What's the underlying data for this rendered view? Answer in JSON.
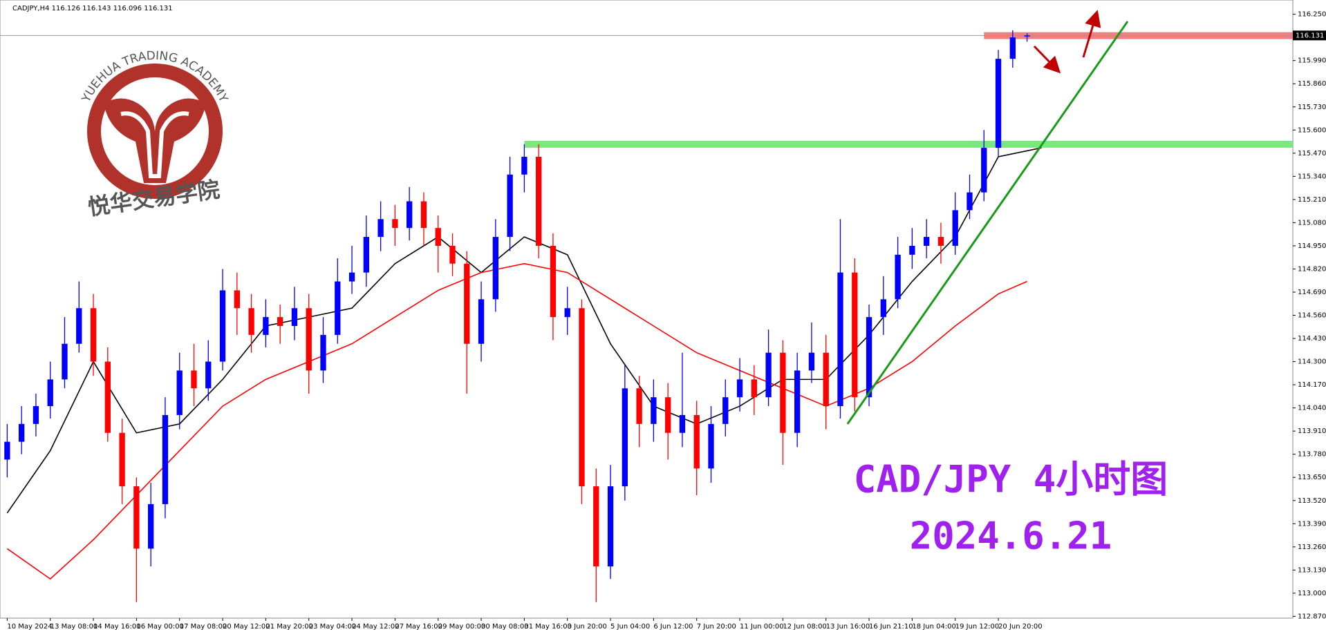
{
  "chart_data": {
    "type": "candlestick",
    "header": "CADJPY,H4  116.126 116.143 116.096 116.131",
    "logo_text": "YUEHUA TRADING ACADEMY",
    "logo_cn": "悦华交易学院",
    "annotations": [
      "CAD/JPY 4小时图",
      "2024.6.21"
    ],
    "current_price": 116.131,
    "xlim": [
      -0.5,
      89.5
    ],
    "ylim": [
      112.86,
      116.33
    ],
    "yticks": [
      {
        "value": 116.25,
        "label": "116.250"
      },
      {
        "value": 115.99,
        "label": "115.990"
      },
      {
        "value": 115.86,
        "label": "115.860"
      },
      {
        "value": 115.73,
        "label": "115.730"
      },
      {
        "value": 115.6,
        "label": "115.600"
      },
      {
        "value": 115.47,
        "label": "115.470"
      },
      {
        "value": 115.34,
        "label": "115.340"
      },
      {
        "value": 115.21,
        "label": "115.210"
      },
      {
        "value": 115.08,
        "label": "115.080"
      },
      {
        "value": 114.95,
        "label": "114.950"
      },
      {
        "value": 114.82,
        "label": "114.820"
      },
      {
        "value": 114.69,
        "label": "114.690"
      },
      {
        "value": 114.56,
        "label": "114.560"
      },
      {
        "value": 114.43,
        "label": "114.430"
      },
      {
        "value": 114.3,
        "label": "114.300"
      },
      {
        "value": 114.17,
        "label": "114.170"
      },
      {
        "value": 114.04,
        "label": "114.040"
      },
      {
        "value": 113.91,
        "label": "113.910"
      },
      {
        "value": 113.78,
        "label": "113.780"
      },
      {
        "value": 113.65,
        "label": "113.650"
      },
      {
        "value": 113.52,
        "label": "113.520"
      },
      {
        "value": 113.39,
        "label": "113.390"
      },
      {
        "value": 113.26,
        "label": "113.260"
      },
      {
        "value": 113.13,
        "label": "113.130"
      },
      {
        "value": 113.0,
        "label": "113.000"
      },
      {
        "value": 112.87,
        "label": "112.870"
      }
    ],
    "xticks": [
      {
        "value": 0,
        "label": "10 May 2024"
      },
      {
        "value": 3,
        "label": "13 May 08:00"
      },
      {
        "value": 6,
        "label": "14 May 16:00"
      },
      {
        "value": 9,
        "label": "16 May 00:00"
      },
      {
        "value": 12,
        "label": "17 May 08:00"
      },
      {
        "value": 15,
        "label": "20 May 12:00"
      },
      {
        "value": 18,
        "label": "21 May 20:00"
      },
      {
        "value": 21,
        "label": "23 May 04:00"
      },
      {
        "value": 24,
        "label": "24 May 12:00"
      },
      {
        "value": 27,
        "label": "27 May 16:00"
      },
      {
        "value": 30,
        "label": "29 May 00:00"
      },
      {
        "value": 33,
        "label": "30 May 08:00"
      },
      {
        "value": 36,
        "label": "31 May 16:00"
      },
      {
        "value": 39,
        "label": "3 Jun 20:00"
      },
      {
        "value": 42,
        "label": "5 Jun 04:00"
      },
      {
        "value": 45,
        "label": "6 Jun 12:00"
      },
      {
        "value": 48,
        "label": "7 Jun 20:00"
      },
      {
        "value": 51,
        "label": "11 Jun 00:00"
      },
      {
        "value": 54,
        "label": "12 Jun 08:00"
      },
      {
        "value": 57,
        "label": "13 Jun 16:00"
      },
      {
        "value": 60,
        "label": "16 Jun 21:10"
      },
      {
        "value": 63,
        "label": "18 Jun 04:00"
      },
      {
        "value": 66,
        "label": "19 Jun 12:00"
      },
      {
        "value": 69,
        "label": "20 Jun 20:00"
      }
    ],
    "open": [
      113.75,
      113.85,
      113.95,
      114.05,
      114.2,
      114.4,
      114.6,
      114.3,
      113.9,
      113.6,
      113.25,
      113.5,
      114.0,
      114.25,
      114.15,
      114.3,
      114.7,
      114.6,
      114.45,
      114.55,
      114.5,
      114.6,
      114.25,
      114.45,
      114.75,
      114.8,
      115.0,
      115.1,
      115.05,
      115.2,
      115.05,
      114.95,
      114.85,
      114.4,
      114.65,
      115.0,
      115.35,
      115.45,
      114.95,
      114.55,
      114.6,
      113.6,
      113.15,
      113.6,
      114.15,
      113.95,
      114.1,
      113.9,
      114.0,
      113.7,
      113.95,
      114.1,
      114.2,
      114.1,
      114.35,
      113.9,
      114.25,
      114.35,
      114.05,
      114.8,
      114.1,
      114.55,
      114.65,
      114.9,
      114.95,
      115.0,
      114.95,
      115.15,
      115.25,
      115.5,
      116.0,
      116.126
    ],
    "high": [
      113.95,
      114.05,
      114.12,
      114.3,
      114.55,
      114.75,
      114.68,
      114.38,
      113.98,
      113.65,
      113.62,
      114.1,
      114.35,
      114.4,
      114.42,
      114.82,
      114.8,
      114.68,
      114.65,
      114.62,
      114.72,
      114.68,
      114.55,
      114.88,
      114.95,
      115.12,
      115.2,
      115.18,
      115.28,
      115.25,
      115.12,
      115.02,
      114.92,
      114.75,
      115.1,
      115.45,
      115.52,
      115.52,
      115.02,
      114.72,
      114.65,
      113.7,
      113.72,
      114.28,
      114.22,
      114.2,
      114.18,
      114.35,
      114.08,
      114.05,
      114.2,
      114.32,
      114.28,
      114.48,
      114.42,
      114.35,
      114.52,
      114.45,
      115.1,
      114.88,
      114.62,
      114.78,
      115.0,
      115.05,
      115.1,
      115.08,
      115.25,
      115.35,
      115.6,
      116.05,
      116.16,
      116.143
    ],
    "low": [
      113.65,
      113.78,
      113.88,
      113.98,
      114.15,
      114.35,
      114.22,
      113.85,
      113.5,
      112.95,
      113.15,
      113.42,
      113.92,
      114.05,
      114.08,
      114.25,
      114.45,
      114.35,
      114.38,
      114.4,
      114.42,
      114.12,
      114.18,
      114.4,
      114.68,
      114.72,
      114.92,
      114.95,
      114.98,
      114.95,
      114.8,
      114.78,
      114.12,
      114.3,
      114.58,
      114.92,
      115.25,
      114.88,
      114.42,
      114.45,
      113.5,
      112.95,
      113.08,
      113.52,
      113.82,
      113.85,
      113.75,
      113.82,
      113.55,
      113.62,
      113.88,
      114.02,
      114.0,
      114.05,
      113.72,
      113.82,
      114.18,
      113.92,
      113.98,
      114.02,
      114.05,
      114.45,
      114.6,
      114.82,
      114.88,
      114.85,
      114.9,
      115.1,
      115.2,
      115.45,
      115.95,
      116.096
    ],
    "close": [
      113.85,
      113.95,
      114.05,
      114.2,
      114.4,
      114.6,
      114.3,
      113.9,
      113.6,
      113.25,
      113.5,
      114.0,
      114.25,
      114.15,
      114.3,
      114.7,
      114.6,
      114.45,
      114.55,
      114.5,
      114.6,
      114.25,
      114.45,
      114.75,
      114.8,
      115.0,
      115.1,
      115.05,
      115.2,
      115.05,
      114.95,
      114.85,
      114.4,
      114.65,
      115.0,
      115.35,
      115.45,
      114.95,
      114.55,
      114.6,
      113.6,
      113.15,
      113.6,
      114.15,
      113.95,
      114.1,
      113.9,
      114.0,
      113.7,
      113.95,
      114.1,
      114.2,
      114.1,
      114.35,
      113.9,
      114.25,
      114.35,
      114.05,
      114.8,
      114.1,
      114.55,
      114.65,
      114.9,
      114.95,
      115.0,
      114.95,
      115.15,
      115.25,
      115.5,
      116.0,
      116.12,
      116.131
    ],
    "up_color": "#0000ff",
    "down_color": "#ff0000",
    "lines": [
      {
        "color": "#000000",
        "x": [
          0,
          3,
          6,
          9,
          12,
          15,
          18,
          21,
          24,
          27,
          30,
          33,
          36,
          39,
          42,
          45,
          48,
          51,
          54,
          57,
          60,
          63,
          66,
          69,
          72
        ],
        "values": [
          113.45,
          113.8,
          114.3,
          113.9,
          113.95,
          114.2,
          114.5,
          114.55,
          114.6,
          114.85,
          115.0,
          114.8,
          115.0,
          114.9,
          114.4,
          114.05,
          113.95,
          114.05,
          114.2,
          114.2,
          114.45,
          114.75,
          115.0,
          115.45,
          115.5
        ]
      },
      {
        "color": "#ff0000",
        "x": [
          0,
          3,
          6,
          9,
          12,
          15,
          18,
          21,
          24,
          27,
          30,
          33,
          36,
          39,
          42,
          45,
          48,
          51,
          54,
          57,
          60,
          63,
          66,
          69,
          71
        ],
        "values": [
          113.25,
          113.08,
          113.3,
          113.55,
          113.8,
          114.05,
          114.2,
          114.3,
          114.4,
          114.55,
          114.7,
          114.8,
          114.85,
          114.8,
          114.65,
          114.5,
          114.35,
          114.25,
          114.15,
          114.05,
          114.15,
          114.3,
          114.5,
          114.68,
          114.75
        ]
      }
    ],
    "levels": [
      {
        "value": 116.13,
        "from": 68,
        "color": "#f08080"
      },
      {
        "value": 115.52,
        "from": 36,
        "color": "#7fe57f"
      }
    ],
    "trendline": {
      "x": [
        58.5,
        78
      ],
      "values": [
        113.95,
        116.21
      ],
      "color": "#1a9a1a"
    }
  }
}
